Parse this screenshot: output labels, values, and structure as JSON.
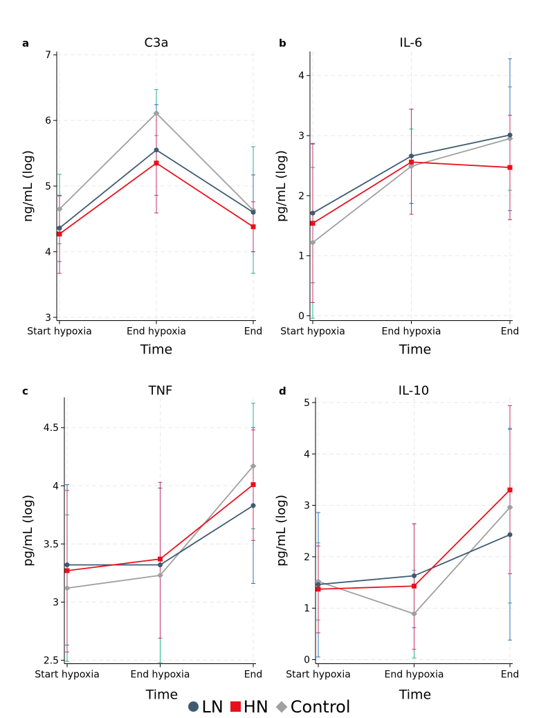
{
  "legend": {
    "items": [
      {
        "label": "LN",
        "color": "#3e5b72",
        "marker": "circle"
      },
      {
        "label": "HN",
        "color": "#e8101b",
        "marker": "square"
      },
      {
        "label": "Control",
        "color": "#a0a0a0",
        "marker": "diamond"
      }
    ]
  },
  "errorbar_colors": {
    "LN": "#2f6fbe",
    "HN": "#c2306a",
    "Control": "#22b38a"
  },
  "chart_data": [
    {
      "panel": "a",
      "title": "C3a",
      "type": "line",
      "xlabel": "Time",
      "ylabel": "ng/mL (log)",
      "categories": [
        "Start hypoxia",
        "End hypoxia",
        "End"
      ],
      "ylim": [
        2.95,
        7.05
      ],
      "yticks": [
        3,
        4,
        5,
        6,
        7
      ],
      "ytick_labels": [
        "3",
        "4",
        "5",
        "6",
        "7"
      ],
      "series": [
        {
          "name": "LN",
          "values": [
            4.36,
            5.55,
            4.6
          ],
          "lower": [
            3.85,
            4.86,
            4.0
          ],
          "upper": [
            4.86,
            6.24,
            5.17
          ]
        },
        {
          "name": "HN",
          "values": [
            4.27,
            5.35,
            4.38
          ],
          "lower": [
            3.67,
            4.59,
            4.0
          ],
          "upper": [
            4.85,
            6.11,
            4.76
          ]
        },
        {
          "name": "Control",
          "values": [
            4.65,
            6.11,
            4.63
          ],
          "lower": [
            4.12,
            5.77,
            3.67
          ],
          "upper": [
            5.18,
            6.47,
            5.6
          ]
        }
      ]
    },
    {
      "panel": "b",
      "title": "IL-6",
      "type": "line",
      "xlabel": "Time",
      "ylabel": "pg/mL (log)",
      "categories": [
        "Start hypoxia",
        "End hypoxia",
        "End"
      ],
      "ylim": [
        -0.08,
        4.4
      ],
      "yticks": [
        0,
        1,
        2,
        3,
        4
      ],
      "ytick_labels": [
        "0",
        "1",
        "2",
        "3",
        "4"
      ],
      "series": [
        {
          "name": "LN",
          "values": [
            1.71,
            2.66,
            3.01
          ],
          "lower": [
            0.55,
            1.87,
            1.75
          ],
          "upper": [
            2.86,
            3.44,
            4.28
          ]
        },
        {
          "name": "HN",
          "values": [
            1.54,
            2.56,
            2.47
          ],
          "lower": [
            0.22,
            1.69,
            1.6
          ],
          "upper": [
            2.87,
            3.44,
            3.34
          ]
        },
        {
          "name": "Control",
          "values": [
            1.22,
            2.49,
            2.95
          ],
          "lower": [
            -0.04,
            1.87,
            2.09
          ],
          "upper": [
            2.47,
            3.11,
            3.81
          ]
        }
      ]
    },
    {
      "panel": "c",
      "title": "TNF",
      "type": "line",
      "xlabel": "Time",
      "ylabel": "pg/mL (log)",
      "categories": [
        "Start hypoxia",
        "End hypoxia",
        "End"
      ],
      "ylim": [
        2.47,
        4.76
      ],
      "yticks": [
        2.5,
        3,
        3.5,
        4,
        4.5
      ],
      "ytick_labels": [
        "2.5",
        "3",
        "3.5",
        "4",
        "4.5"
      ],
      "series": [
        {
          "name": "LN",
          "values": [
            3.32,
            3.32,
            3.83
          ],
          "lower": [
            2.63,
            2.69,
            3.16
          ],
          "upper": [
            4.01,
            3.98,
            4.5
          ]
        },
        {
          "name": "HN",
          "values": [
            3.27,
            3.37,
            4.01
          ],
          "lower": [
            2.57,
            2.69,
            3.53
          ],
          "upper": [
            3.96,
            4.03,
            4.48
          ]
        },
        {
          "name": "Control",
          "values": [
            3.12,
            3.23,
            4.17
          ],
          "lower": [
            2.49,
            2.48,
            3.63
          ],
          "upper": [
            3.75,
            3.98,
            4.71
          ]
        }
      ]
    },
    {
      "panel": "d",
      "title": "IL-10",
      "type": "line",
      "xlabel": "Time",
      "ylabel": "pg/mL (log)",
      "categories": [
        "Start hypoxia",
        "End hypoxia",
        "End"
      ],
      "ylim": [
        -0.08,
        5.1
      ],
      "yticks": [
        0,
        1,
        2,
        3,
        4,
        5
      ],
      "ytick_labels": [
        "0",
        "1",
        "2",
        "3",
        "4",
        "5"
      ],
      "series": [
        {
          "name": "LN",
          "values": [
            1.46,
            1.63,
            2.43
          ],
          "lower": [
            0.05,
            0.62,
            0.38
          ],
          "upper": [
            2.86,
            2.64,
            4.48
          ]
        },
        {
          "name": "HN",
          "values": [
            1.37,
            1.43,
            3.3
          ],
          "lower": [
            0.52,
            0.2,
            1.67
          ],
          "upper": [
            2.21,
            2.64,
            4.94
          ]
        },
        {
          "name": "Control",
          "values": [
            1.52,
            0.89,
            2.96
          ],
          "lower": [
            0.77,
            0.03,
            1.1
          ],
          "upper": [
            2.27,
            1.74,
            4.5
          ]
        }
      ]
    }
  ]
}
